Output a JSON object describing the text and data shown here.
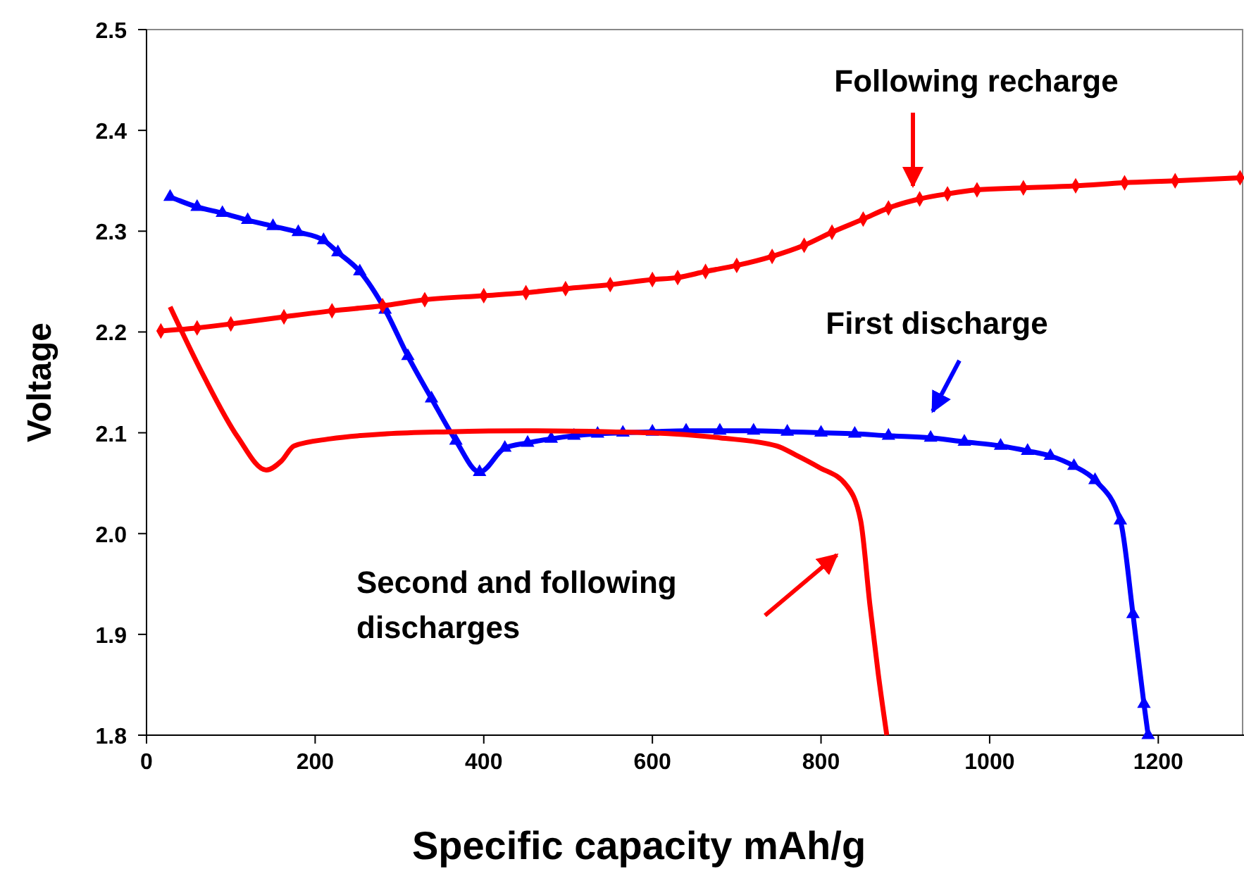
{
  "chart_data": {
    "type": "line",
    "xlabel": "Specific capacity mAh/g",
    "ylabel": "Voltage",
    "xlim": [
      0,
      1300
    ],
    "ylim": [
      1.8,
      2.5
    ],
    "xticks": [
      0,
      200,
      400,
      600,
      800,
      1000,
      1200
    ],
    "yticks": [
      {
        "value": 1.8,
        "label": "1.8"
      },
      {
        "value": 1.9,
        "label": "1.9"
      },
      {
        "value": 2.0,
        "label": "2.0"
      },
      {
        "value": 2.1,
        "label": "2.1"
      },
      {
        "value": 2.2,
        "label": "2.2"
      },
      {
        "value": 2.3,
        "label": "2.3"
      },
      {
        "value": 2.4,
        "label": "2.4"
      },
      {
        "value": 2.5,
        "label": "2.5"
      }
    ],
    "grid": false,
    "line_style": "solid",
    "series": [
      {
        "color": "#0000ff",
        "marker": "triangle",
        "x": [
          28,
          60,
          90,
          120,
          150,
          180,
          210,
          227,
          253,
          283,
          310,
          338,
          367,
          395,
          425,
          452,
          480,
          507,
          535,
          565,
          600,
          640,
          680,
          720,
          760,
          800,
          840,
          880,
          930,
          970,
          1013,
          1045,
          1072,
          1100,
          1125,
          1155,
          1170,
          1183,
          1188
        ],
        "values": [
          2.334,
          2.324,
          2.318,
          2.311,
          2.305,
          2.299,
          2.291,
          2.279,
          2.26,
          2.222,
          2.176,
          2.134,
          2.092,
          2.061,
          2.085,
          2.09,
          2.094,
          2.097,
          2.099,
          2.1,
          2.101,
          2.102,
          2.102,
          2.102,
          2.101,
          2.1,
          2.099,
          2.097,
          2.095,
          2.091,
          2.087,
          2.082,
          2.077,
          2.067,
          2.053,
          2.013,
          1.92,
          1.831,
          1.8
        ]
      },
      {
        "color": "#ff0000",
        "marker": "diamond",
        "x": [
          17,
          60,
          100,
          163,
          220,
          280,
          330,
          400,
          450,
          497,
          550,
          600,
          630,
          663,
          700,
          742,
          780,
          813,
          850,
          880,
          917,
          950,
          985,
          1040,
          1102,
          1160,
          1220,
          1297
        ],
        "values": [
          2.201,
          2.204,
          2.208,
          2.215,
          2.221,
          2.226,
          2.232,
          2.236,
          2.239,
          2.243,
          2.247,
          2.252,
          2.254,
          2.26,
          2.266,
          2.275,
          2.286,
          2.299,
          2.312,
          2.323,
          2.332,
          2.337,
          2.341,
          2.343,
          2.345,
          2.348,
          2.35,
          2.353
        ]
      },
      {
        "color": "#ff0000",
        "marker": "none",
        "x": [
          28,
          68,
          108,
          142,
          160,
          175,
          218,
          285,
          358,
          450,
          550,
          597,
          680,
          747,
          770,
          797,
          830,
          847,
          858,
          868,
          878
        ],
        "values": [
          2.225,
          2.156,
          2.096,
          2.063,
          2.072,
          2.087,
          2.094,
          2.099,
          2.101,
          2.102,
          2.101,
          2.1,
          2.095,
          2.087,
          2.078,
          2.066,
          2.048,
          2.013,
          1.929,
          1.86,
          1.8
        ]
      }
    ],
    "annotations": [
      "Following recharge",
      "First discharge",
      "Second and following discharges"
    ]
  }
}
